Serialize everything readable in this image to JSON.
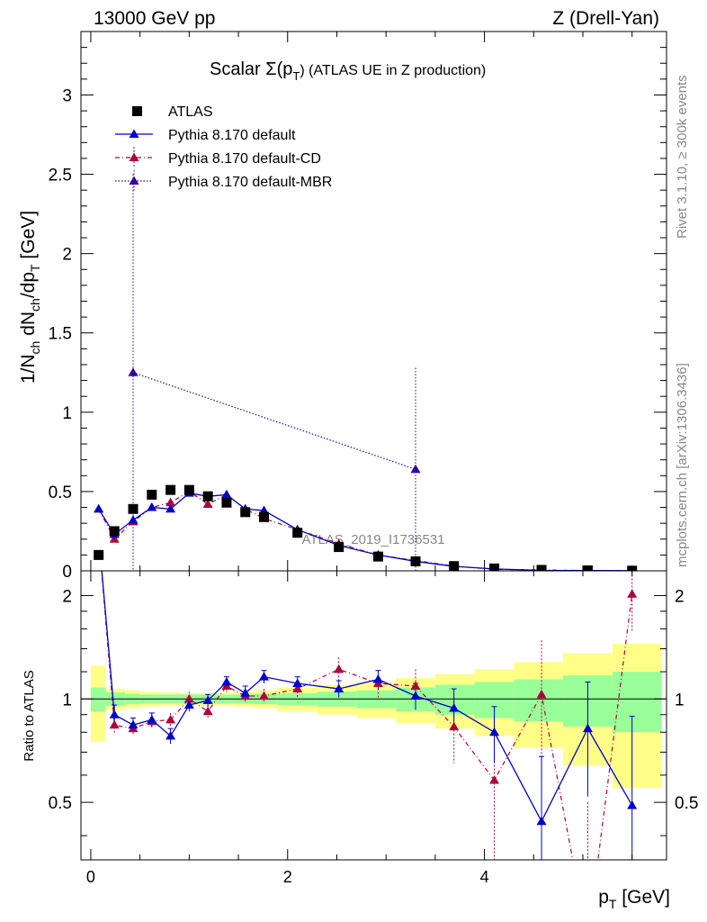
{
  "header": {
    "left": "13000 GeV pp",
    "right": "Z (Drell-Yan)"
  },
  "side_labels": {
    "rivet": "Rivet 3.1.10, ≥ 300k events",
    "mcplots": "mcplots.cern.ch [arXiv:1306.3436]"
  },
  "chart_data": {
    "type": "scatter",
    "title": "Scalar Σ(p_T) (ATLAS UE in Z production)",
    "title_parts": {
      "pre": "Scalar Σ(p",
      "sub": "T",
      "post": ") (ATLAS UE in Z production)"
    },
    "analysis_label": "ATLAS_2019_I1736531",
    "xlabel": "p_T [GeV]",
    "xlabel_parts": {
      "pre": "p",
      "sub": "T",
      "post": " [GeV]"
    },
    "ylabel_main": "1/N_ch dN_ch/dp_T [GeV]",
    "ylabel_main_parts": {
      "t1": "1/N",
      "s1": "ch",
      "t2": " dN",
      "s2": "ch",
      "t3": "/dp",
      "s3": "T",
      "t4": " [GeV]"
    },
    "ylabel_ratio": "Ratio to ATLAS",
    "xlim": [
      -0.1,
      5.85
    ],
    "ylim_main": [
      0,
      3.4
    ],
    "ylim_ratio": [
      0.34,
      2.36
    ],
    "x_ticks": [
      "0",
      "2",
      "4"
    ],
    "x_tick_values": [
      0,
      2,
      4
    ],
    "y_ticks_main": [
      "0",
      "0.5",
      "1",
      "1.5",
      "2",
      "2.5",
      "3"
    ],
    "y_tick_values_main": [
      0,
      0.5,
      1,
      1.5,
      2,
      2.5,
      3
    ],
    "y_ticks_ratio": [
      "0.5",
      "1",
      "2"
    ],
    "y_tick_values_ratio": [
      0.5,
      1,
      2
    ],
    "x": [
      0.08,
      0.24,
      0.43,
      0.62,
      0.81,
      1.0,
      1.19,
      1.38,
      1.57,
      1.76,
      2.1,
      2.52,
      2.92,
      3.3,
      3.69,
      4.1,
      4.58,
      5.05,
      5.5
    ],
    "bin_edges": [
      0.0,
      0.15,
      0.35,
      0.5,
      0.7,
      0.9,
      1.1,
      1.3,
      1.45,
      1.65,
      1.9,
      2.3,
      2.7,
      3.1,
      3.5,
      3.9,
      4.3,
      4.8,
      5.3,
      5.8
    ],
    "band_inner_frac": [
      0.08,
      0.045,
      0.035,
      0.03,
      0.03,
      0.03,
      0.03,
      0.03,
      0.03,
      0.035,
      0.04,
      0.05,
      0.06,
      0.08,
      0.1,
      0.12,
      0.14,
      0.17,
      0.2
    ],
    "band_outer_frac": [
      0.25,
      0.07,
      0.06,
      0.05,
      0.045,
      0.04,
      0.04,
      0.045,
      0.05,
      0.06,
      0.08,
      0.1,
      0.12,
      0.15,
      0.18,
      0.22,
      0.28,
      0.36,
      0.45
    ],
    "legend": [
      "ATLAS",
      "Pythia 8.170 default",
      "Pythia 8.170 default-CD",
      "Pythia 8.170 default-MBR"
    ],
    "series": [
      {
        "name": "ATLAS",
        "color": "#000000",
        "marker": "square",
        "y": [
          0.1,
          0.25,
          0.39,
          0.48,
          0.51,
          0.51,
          0.47,
          0.43,
          0.37,
          0.34,
          0.24,
          0.15,
          0.09,
          0.06,
          0.03,
          0.015,
          0.006,
          0.003,
          0.001
        ]
      },
      {
        "name": "Pythia 8.170 default",
        "color": "#0000cc",
        "marker": "triangle",
        "y": [
          0.39,
          0.23,
          0.32,
          0.4,
          0.39,
          0.49,
          0.47,
          0.48,
          0.39,
          0.38,
          0.26,
          0.16,
          0.1,
          0.06,
          0.028,
          0.012,
          0.003,
          0.002,
          0.001
        ],
        "ratio": [
          3.0,
          0.9,
          0.84,
          0.87,
          0.78,
          0.96,
          0.99,
          1.12,
          1.04,
          1.16,
          1.11,
          1.07,
          1.14,
          1.02,
          0.94,
          0.8,
          0.44,
          0.82,
          0.49
        ],
        "ratio_err": [
          0.0,
          0.06,
          0.04,
          0.04,
          0.04,
          0.04,
          0.04,
          0.04,
          0.05,
          0.05,
          0.05,
          0.06,
          0.07,
          0.09,
          0.13,
          0.15,
          0.24,
          0.3,
          0.4
        ]
      },
      {
        "name": "Pythia 8.170 default-CD",
        "color": "#b0003c",
        "marker": "triangle",
        "y": [
          0.39,
          0.2,
          0.31,
          0.4,
          0.43,
          0.5,
          0.42,
          0.48,
          0.39,
          0.33,
          0.26,
          0.17,
          0.1,
          0.065,
          0.03,
          0.009,
          0.006,
          0.001,
          0.002
        ],
        "ratio": [
          3.0,
          0.84,
          0.82,
          0.86,
          0.87,
          1.0,
          0.92,
          1.09,
          1.02,
          1.02,
          1.07,
          1.22,
          1.11,
          1.09,
          0.83,
          0.58,
          1.03,
          0.0,
          2.02
        ],
        "ratio_err": [
          0.0,
          0.05,
          0.04,
          0.04,
          0.04,
          0.05,
          0.04,
          0.05,
          0.05,
          0.05,
          0.06,
          0.1,
          0.1,
          0.13,
          0.18,
          0.3,
          0.45,
          0.5,
          0.45
        ]
      },
      {
        "name": "Pythia 8.170 default-MBR",
        "color": "#3300aa",
        "marker": "triangle",
        "x_points": [
          0.43,
          3.3
        ],
        "y": [
          1.25,
          0.64
        ],
        "y_err": [
          1.25,
          0.64
        ]
      }
    ]
  }
}
